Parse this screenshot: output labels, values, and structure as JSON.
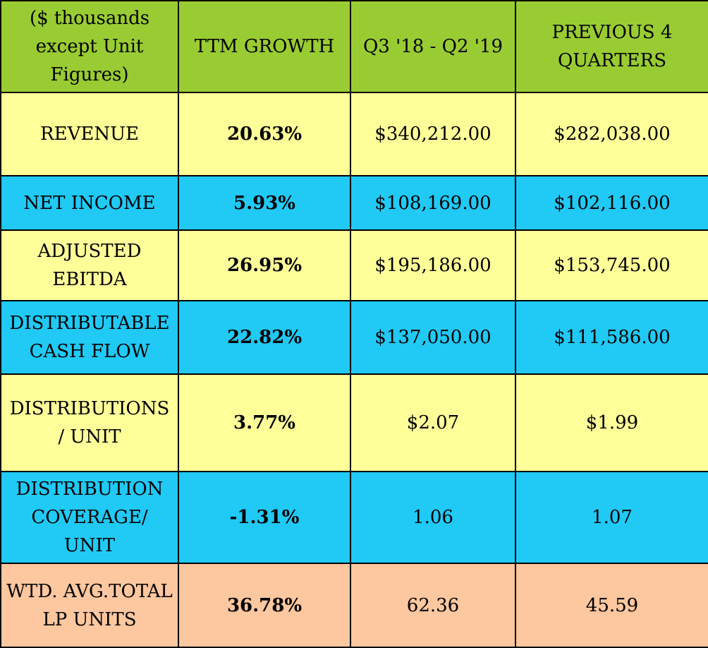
{
  "chart_data": {
    "type": "table",
    "columns": [
      "($ thousands except Unit Figures)",
      "TTM GROWTH",
      "Q3 '18 - Q2 '19",
      "PREVIOUS 4 QUARTERS"
    ],
    "rows": [
      {
        "label": "REVENUE",
        "growth": "20.63%",
        "current": "$340,212.00",
        "previous": "$282,038.00"
      },
      {
        "label": "NET INCOME",
        "growth": "5.93%",
        "current": "$108,169.00",
        "previous": "$102,116.00"
      },
      {
        "label": "ADJUSTED EBITDA",
        "growth": "26.95%",
        "current": "$195,186.00",
        "previous": "$153,745.00"
      },
      {
        "label": "DISTRIBUTABLE CASH FLOW",
        "growth": "22.82%",
        "current": "$137,050.00",
        "previous": "$111,586.00"
      },
      {
        "label": "DISTRIBUTIONS / UNIT",
        "growth": "3.77%",
        "current": "$2.07",
        "previous": "$1.99"
      },
      {
        "label": "DISTRIBUTION COVERAGE/ UNIT",
        "growth": "-1.31%",
        "current": "1.06",
        "previous": "1.07"
      },
      {
        "label": "WTD. AVG.TOTAL LP UNITS",
        "growth": "36.78%",
        "current": "62.36",
        "previous": "45.59"
      }
    ]
  },
  "colors": {
    "header": "#99cc33",
    "row_yellow": "#ffff99",
    "row_blue": "#21c9f5",
    "row_peach": "#fdc79f",
    "border": "#000000"
  }
}
